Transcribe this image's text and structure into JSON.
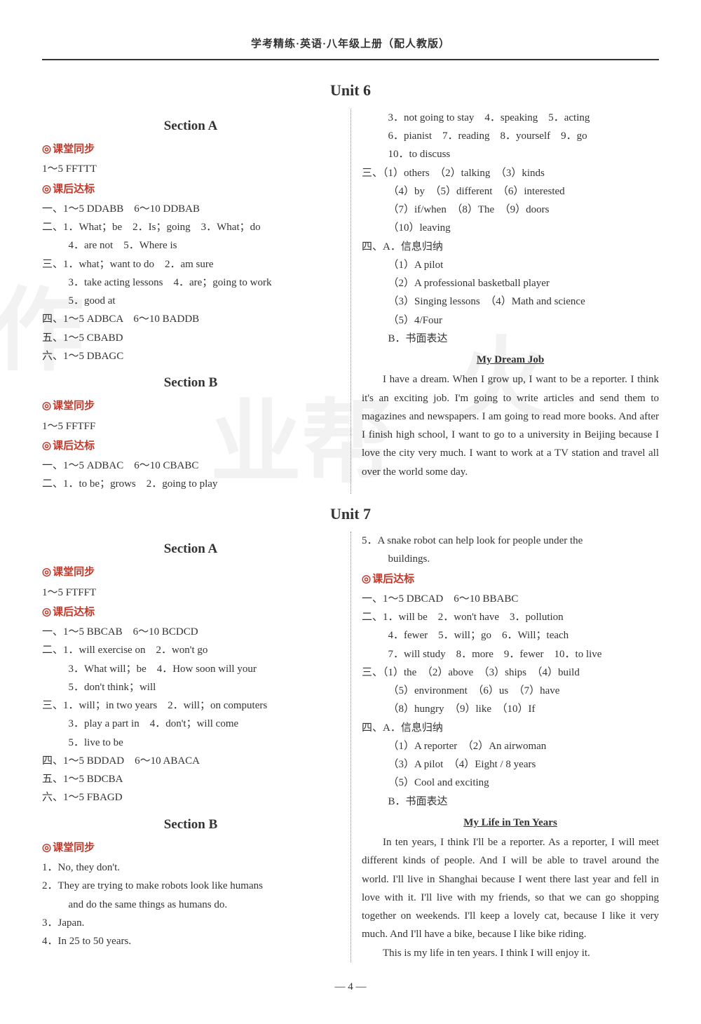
{
  "header": "学考精练·英语·八年级上册（配人教版）",
  "page_number": "— 4 —",
  "watermarks": {
    "w1": "作",
    "w2": "业帮",
    "w3": "火"
  },
  "colors": {
    "primary_red": "#c0392b",
    "rule": "#333333",
    "text": "#333333"
  },
  "u6": {
    "title": "Unit 6",
    "secA": {
      "title": "Section A",
      "kt": "课堂同步",
      "kt_l1": "1～5 FFTTT",
      "kh": "课后达标",
      "p1": "一、1～5 DDABB　6～10 DDBAB",
      "p2a": "二、1．What；be　2．Is；going　3．What；do",
      "p2b": "4．are not　5．Where is",
      "p3a": "三、1．what；want to do　2．am sure",
      "p3b": "3．take acting lessons　4．are；going to work",
      "p3c": "5．good at",
      "p4": "四、1～5 ADBCA　6～10 BADDB",
      "p5": "五、1～5 CBABD",
      "p6": "六、1～5 DBAGC"
    },
    "secB": {
      "title": "Section B",
      "kt": "课堂同步",
      "kt_l1": "1～5 FFTFF",
      "kh": "课后达标",
      "p1": "一、1～5 ADBAC　6～10 CBABC",
      "p2a": "二、1．to be；grows　2．going to play",
      "p2b": "3．not going to stay　4．speaking　5．acting",
      "p2c": "6．pianist　7．reading　8．yourself　9．go",
      "p2d": "10．to discuss",
      "p3a": "三、（1）others　（2）talking　（3）kinds",
      "p3b": "（4）by　（5）different　（6）interested",
      "p3c": "（7）if/when　（8）The　（9）doors",
      "p3d": "（10）leaving",
      "p4a": "四、A．信息归纳",
      "p4b": "（1）A pilot",
      "p4c": "（2）A professional basketball player",
      "p4d": "（3）Singing lessons　（4）Math and science",
      "p4e": "（5）4/Four",
      "p4f": "B．书面表达",
      "essay_title": "My Dream Job",
      "essay": "I have a dream. When I grow up, I want to be a reporter. I think it's an exciting job. I'm going to write articles and send them to magazines and newspapers. I am going to read more books. And after I finish high school, I want to go to a university in Beijing because I love the city very much. I want to work at a TV station and travel all over the world some day."
    }
  },
  "u7": {
    "title": "Unit 7",
    "secA": {
      "title": "Section A",
      "kt": "课堂同步",
      "kt_l1": "1～5 FTFFT",
      "kh": "课后达标",
      "p1": "一、1～5 BBCAB　6～10 BCDCD",
      "p2a": "二、1．will exercise on　2．won't go",
      "p2b": "3．What will；be　4．How soon will your",
      "p2c": "5．don't think；will",
      "p3a": "三、1．will；in two years　2．will；on computers",
      "p3b": "3．play a part in　4．don't；will come",
      "p3c": "5．live to be",
      "p4": "四、1～5 BDDAD　6～10 ABACA",
      "p5": "五、1～5 BDCBA",
      "p6": "六、1～5 FBAGD"
    },
    "secB": {
      "title": "Section B",
      "kt": "课堂同步",
      "q1": "1．No, they don't.",
      "q2a": "2．They are trying to make robots look like humans",
      "q2b": "and do the same things as humans do.",
      "q3": "3．Japan.",
      "q4": "4．In 25 to 50 years.",
      "q5a": "5．A snake robot can help look for people under the",
      "q5b": "buildings.",
      "kh": "课后达标",
      "p1": "一、1～5 DBCAD　6～10 BBABC",
      "p2a": "二、1．will be　2．won't have　3．pollution",
      "p2b": "4．fewer　5．will；go　6．Will；teach",
      "p2c": "7．will study　8．more　9．fewer　10．to live",
      "p3a": "三、（1）the　（2）above　（3）ships　（4）build",
      "p3b": "（5）environment　（6）us　（7）have",
      "p3c": "（8）hungry　（9）like　（10）If",
      "p4a": "四、A．信息归纳",
      "p4b": "（1）A reporter　（2）An airwoman",
      "p4c": "（3）A pilot　（4）Eight / 8 years",
      "p4d": "（5）Cool and exciting",
      "p4e": "B．书面表达",
      "essay_title": "My Life in Ten Years",
      "essay1": "In ten years, I think I'll be a reporter. As a reporter, I will meet different kinds of people. And I will be able to travel around the world. I'll live in Shanghai because I went there last year and fell in love with it. I'll live with my friends, so that we can go shopping together on weekends. I'll keep a lovely cat, because I like it very much. And I'll have a bike, because I like bike riding.",
      "essay2": "This is my life in ten years. I think I will enjoy it."
    }
  }
}
